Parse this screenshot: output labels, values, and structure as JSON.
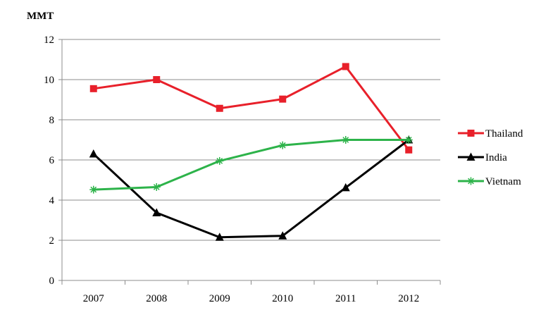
{
  "chart_data": {
    "type": "line",
    "unit_label": "MMT",
    "categories": [
      "2007",
      "2008",
      "2009",
      "2010",
      "2011",
      "2012"
    ],
    "ylim": [
      0,
      12
    ],
    "yticks": [
      0,
      2,
      4,
      6,
      8,
      10,
      12
    ],
    "grid": true,
    "legend_position": "right",
    "series": [
      {
        "name": "Thailand",
        "color": "#e8202a",
        "marker": "square",
        "values": [
          9.55,
          10.0,
          8.57,
          9.03,
          10.65,
          6.5
        ]
      },
      {
        "name": "India",
        "color": "#000000",
        "marker": "triangle",
        "values": [
          6.3,
          3.37,
          2.15,
          2.22,
          4.62,
          7.0
        ]
      },
      {
        "name": "Vietnam",
        "color": "#2db34a",
        "marker": "asterisk",
        "values": [
          4.52,
          4.65,
          5.95,
          6.73,
          7.0,
          7.0
        ]
      }
    ]
  }
}
